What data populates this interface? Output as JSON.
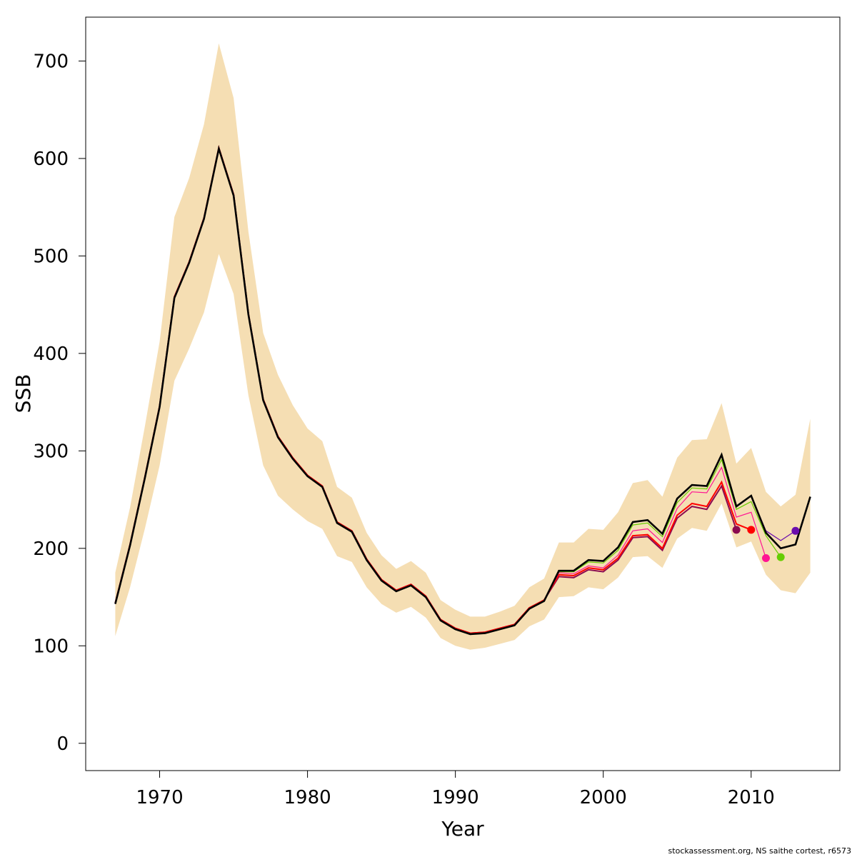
{
  "footer": {
    "credit": "stockassessment.org, NS saithe cortest, r6573"
  },
  "chart_data": {
    "type": "line",
    "xlabel": "Year",
    "ylabel": "SSB",
    "xlim": [
      1965,
      2016
    ],
    "ylim": [
      -28,
      745
    ],
    "xticks": [
      1970,
      1980,
      1990,
      2000,
      2010
    ],
    "yticks": [
      0,
      100,
      200,
      300,
      400,
      500,
      600,
      700
    ],
    "grid": false,
    "colors": {
      "band": "#f5deb3",
      "main_line": "#000000",
      "retro_lines": [
        "#8b0a50",
        "#ff0000",
        "#ff1493",
        "#66cd00",
        "#6a0dad"
      ]
    },
    "x": [
      1967,
      1968,
      1969,
      1970,
      1971,
      1972,
      1973,
      1974,
      1975,
      1976,
      1977,
      1978,
      1979,
      1980,
      1981,
      1982,
      1983,
      1984,
      1985,
      1986,
      1987,
      1988,
      1989,
      1990,
      1991,
      1992,
      1993,
      1994,
      1995,
      1996,
      1997,
      1998,
      1999,
      2000,
      2001,
      2002,
      2003,
      2004,
      2005,
      2006,
      2007,
      2008,
      2009,
      2010,
      2011,
      2012,
      2013,
      2014
    ],
    "band_lower": [
      110,
      160,
      220,
      285,
      372,
      405,
      442,
      502,
      461,
      357,
      285,
      254,
      240,
      228,
      220,
      192,
      186,
      160,
      143,
      134,
      140,
      129,
      108,
      100,
      96,
      98,
      102,
      106,
      120,
      127,
      150,
      151,
      160,
      158,
      170,
      191,
      192,
      180,
      210,
      221,
      218,
      246,
      201,
      207,
      173,
      157,
      154,
      175
    ],
    "band_upper": [
      175,
      242,
      325,
      412,
      540,
      580,
      635,
      718,
      662,
      525,
      421,
      378,
      347,
      323,
      310,
      263,
      252,
      216,
      193,
      179,
      187,
      175,
      147,
      137,
      130,
      130,
      135,
      141,
      160,
      169,
      206,
      206,
      220,
      219,
      237,
      267,
      270,
      253,
      293,
      311,
      312,
      349,
      287,
      303,
      258,
      243,
      255,
      333
    ],
    "series": [
      {
        "values": [
          143,
          203,
          272,
          345,
          457,
          493,
          538,
          610,
          562,
          440,
          352,
          314,
          292,
          274,
          263,
          226,
          217,
          188,
          167,
          156,
          162,
          150,
          126,
          117,
          112,
          113,
          117,
          121,
          138,
          146,
          177,
          177,
          188,
          187,
          201,
          227,
          229,
          215,
          251,
          265,
          264,
          296,
          243,
          254,
          216,
          200,
          204,
          253
        ]
      },
      {
        "values": [
          143,
          203,
          272,
          345,
          457,
          495,
          542,
          615,
          565,
          441,
          353,
          315,
          293,
          275,
          264,
          227,
          218,
          189,
          168,
          157,
          163,
          151,
          127,
          118,
          113,
          114,
          118,
          122,
          139,
          147,
          177,
          177,
          188,
          187,
          201,
          227,
          229,
          215,
          251,
          265,
          264,
          296,
          243,
          253,
          213,
          null,
          null,
          null
        ],
        "points": [
          [
            2009,
            219
          ]
        ]
      },
      {
        "values": [
          143,
          203,
          272,
          345,
          457,
          495,
          542,
          616,
          565,
          441,
          353,
          315,
          293,
          275,
          264,
          227,
          218,
          189,
          168,
          157,
          163,
          151,
          127,
          118,
          113,
          114,
          118,
          122,
          139,
          147,
          177,
          177,
          188,
          187,
          201,
          227,
          229,
          215,
          251,
          265,
          264,
          296,
          243,
          253,
          213,
          null,
          null,
          null
        ],
        "points": [
          [
            2010,
            219
          ]
        ]
      },
      {
        "values": [
          143,
          203,
          272,
          345,
          457,
          495,
          542,
          616,
          565,
          441,
          353,
          315,
          293,
          275,
          264,
          227,
          218,
          189,
          168,
          157,
          163,
          151,
          127,
          118,
          113,
          114,
          118,
          122,
          139,
          147,
          177,
          177,
          188,
          187,
          201,
          227,
          229,
          215,
          251,
          265,
          264,
          296,
          243,
          253,
          213,
          null,
          null,
          null
        ],
        "points": [
          [
            2011,
            190
          ]
        ]
      },
      {
        "values": [
          143,
          203,
          272,
          345,
          457,
          495,
          542,
          616,
          565,
          441,
          353,
          315,
          293,
          275,
          264,
          227,
          218,
          189,
          168,
          157,
          163,
          151,
          127,
          118,
          113,
          114,
          118,
          122,
          139,
          147,
          177,
          177,
          188,
          187,
          201,
          227,
          229,
          215,
          251,
          265,
          264,
          296,
          243,
          253,
          213,
          null,
          null,
          null
        ],
        "points": [
          [
            2012,
            191
          ]
        ]
      },
      {
        "values": [
          null,
          null,
          null,
          null,
          null,
          null,
          null,
          null,
          null,
          null,
          null,
          null,
          null,
          null,
          null,
          null,
          null,
          null,
          null,
          null,
          null,
          null,
          null,
          null,
          null,
          null,
          null,
          null,
          null,
          null,
          null,
          null,
          null,
          null,
          null,
          null,
          null,
          null,
          null,
          null,
          null,
          null,
          null,
          null,
          null,
          null,
          null,
          null
        ],
        "points": [
          [
            2013,
            218
          ]
        ]
      }
    ],
    "retro": [
      {
        "color": "#8b0a50",
        "values": {
          "1997": 171,
          "1998": 170,
          "1999": 178,
          "2000": 176,
          "2001": 188,
          "2002": 211,
          "2003": 212,
          "2004": 198,
          "2005": 231,
          "2006": 243,
          "2007": 240,
          "2008": 264,
          "2009": 219
        }
      },
      {
        "color": "#ff0000",
        "values": {
          "1997": 173,
          "1998": 172,
          "1999": 180,
          "2000": 178,
          "2001": 190,
          "2002": 213,
          "2003": 214,
          "2004": 200,
          "2005": 234,
          "2006": 246,
          "2007": 243,
          "2008": 268,
          "2009": 225,
          "2010": 219
        }
      },
      {
        "color": "#ff1493",
        "values": {
          "1997": 175,
          "1998": 174,
          "1999": 182,
          "2000": 180,
          "2001": 193,
          "2002": 218,
          "2003": 220,
          "2004": 206,
          "2005": 241,
          "2006": 258,
          "2007": 257,
          "2008": 283,
          "2009": 232,
          "2010": 237,
          "2011": 190
        }
      },
      {
        "color": "#66cd00",
        "values": {
          "1997": 176,
          "1998": 176,
          "1999": 186,
          "2000": 185,
          "2001": 198,
          "2002": 224,
          "2003": 226,
          "2004": 212,
          "2005": 247,
          "2006": 262,
          "2007": 261,
          "2008": 291,
          "2009": 240,
          "2010": 248,
          "2011": 213,
          "2012": 191
        }
      },
      {
        "color": "#6a0dad",
        "values": {
          "1997": 177,
          "1998": 177,
          "1999": 188,
          "2000": 187,
          "2001": 201,
          "2002": 227,
          "2003": 229,
          "2004": 215,
          "2005": 251,
          "2006": 265,
          "2007": 264,
          "2008": 296,
          "2009": 243,
          "2010": 254,
          "2011": 218,
          "2012": 208,
          "2013": 218
        }
      }
    ]
  }
}
